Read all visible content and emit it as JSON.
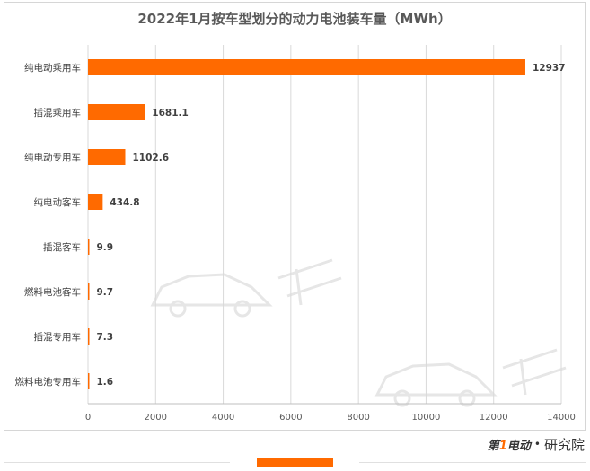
{
  "chart_data": {
    "type": "bar",
    "orientation": "horizontal",
    "title": "2022年1月按车型划分的动力电池装车量（MWh）",
    "categories": [
      "纯电动乘用车",
      "插混乘用车",
      "纯电动专用车",
      "纯电动客车",
      "插混客车",
      "燃料电池客车",
      "插混专用车",
      "燃料电池专用车"
    ],
    "values": [
      12937,
      1681.1,
      1102.6,
      434.8,
      9.9,
      9.7,
      7.3,
      1.6
    ],
    "value_labels": [
      "12937",
      "1681.1",
      "1102.6",
      "434.8",
      "9.9",
      "9.7",
      "7.3",
      "1.6"
    ],
    "xlim": [
      0,
      14000
    ],
    "xticks": [
      "0",
      "2000",
      "4000",
      "6000",
      "8000",
      "10000",
      "12000",
      "14000"
    ],
    "xtick_values": [
      0,
      2000,
      4000,
      6000,
      8000,
      10000,
      12000,
      14000
    ],
    "grid": true,
    "bar_color": "#ff6a00"
  },
  "brand": {
    "logo_prefix": "第",
    "logo_one": "1",
    "logo_suffix": "电动",
    "dot": "•",
    "text": "研究院"
  },
  "colors": {
    "accent": "#ff6a00"
  }
}
